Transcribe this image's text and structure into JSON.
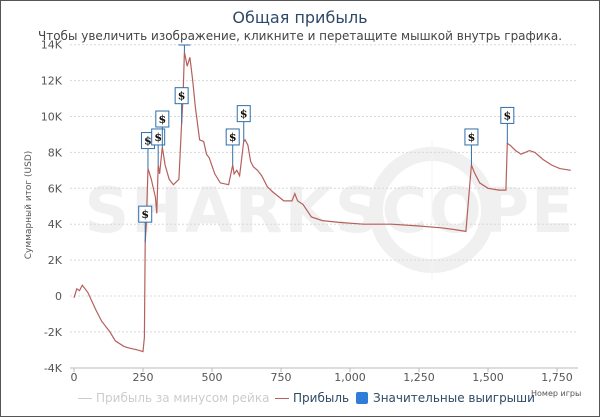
{
  "header": {
    "title": "Общая прибыль",
    "subtitle": "Чтобы увеличить изображение, кликните и перетащите мышкой внутрь графика."
  },
  "axes": {
    "y_title": "Суммарный итог (USD)",
    "x_title": "Номер игры",
    "y_ticks": [
      "14K",
      "12K",
      "10K",
      "8K",
      "6K",
      "4K",
      "2K",
      "0",
      "-2K",
      "-4K"
    ],
    "x_ticks": [
      "0",
      "250",
      "500",
      "750",
      "1,000",
      "1,250",
      "1,500",
      "1,750"
    ]
  },
  "legend": {
    "item1": "Прибыль за минусом рейка",
    "item2": "Прибыль",
    "item3": "Значительные выигрыши"
  },
  "watermark": "SHARKSCOPE",
  "colors": {
    "profit_line": "#b5605c",
    "flag_border": "#2f6eaa",
    "legend_flag": "#2f7dd8",
    "rake_line": "#cccccc"
  },
  "chart_data": {
    "type": "line",
    "title": "Общая прибыль",
    "subtitle": "Чтобы увеличить изображение, кликните и перетащите мышкой внутрь графика.",
    "xlabel": "Номер игры",
    "ylabel": "Суммарный итог (USD)",
    "xlim": [
      0,
      1820
    ],
    "ylim": [
      -4000,
      14000
    ],
    "grid": true,
    "legend_position": "bottom",
    "series": [
      {
        "name": "Прибыль",
        "x": [
          0,
          10,
          20,
          30,
          50,
          80,
          100,
          120,
          130,
          150,
          180,
          200,
          230,
          250,
          255,
          258,
          262,
          268,
          280,
          295,
          300,
          305,
          310,
          320,
          330,
          345,
          360,
          380,
          390,
          395,
          400,
          410,
          420,
          430,
          440,
          455,
          470,
          480,
          490,
          510,
          530,
          560,
          575,
          580,
          590,
          600,
          615,
          620,
          630,
          640,
          650,
          665,
          680,
          700,
          720,
          760,
          790,
          800,
          810,
          830,
          860,
          900,
          960,
          1050,
          1150,
          1250,
          1330,
          1380,
          1420,
          1440,
          1450,
          1470,
          1500,
          1540,
          1565,
          1570,
          1580,
          1600,
          1620,
          1650,
          1670,
          1700,
          1730,
          1760,
          1800
        ],
        "y": [
          -100,
          400,
          300,
          600,
          200,
          -800,
          -1400,
          -1800,
          -2000,
          -2500,
          -2800,
          -2900,
          -3000,
          -3100,
          -2300,
          3000,
          4000,
          7100,
          6500,
          5500,
          4600,
          7300,
          6800,
          8300,
          7300,
          6500,
          6200,
          6500,
          9600,
          11000,
          13600,
          12800,
          13300,
          12000,
          10500,
          8700,
          8600,
          7900,
          7700,
          6800,
          6300,
          6200,
          7300,
          6800,
          7000,
          6700,
          8600,
          8700,
          8400,
          7500,
          7200,
          7000,
          6700,
          6100,
          5800,
          5300,
          5300,
          5700,
          5300,
          5100,
          4400,
          4200,
          4100,
          4000,
          4000,
          3900,
          3800,
          3700,
          3600,
          7300,
          6900,
          6300,
          6000,
          5900,
          5900,
          8500,
          8400,
          8100,
          7900,
          8100,
          8000,
          7600,
          7300,
          7100,
          7000
        ]
      },
      {
        "name": "Прибыль за минусом рейка",
        "values": [],
        "hidden": true
      }
    ],
    "flags": [
      {
        "x": 258,
        "y": 3000,
        "label": "$"
      },
      {
        "x": 268,
        "y": 7100,
        "label": "$"
      },
      {
        "x": 305,
        "y": 7300,
        "label": "$"
      },
      {
        "x": 320,
        "y": 8300,
        "label": "$"
      },
      {
        "x": 390,
        "y": 9600,
        "label": "$"
      },
      {
        "x": 575,
        "y": 7300,
        "label": "$"
      },
      {
        "x": 615,
        "y": 8600,
        "label": "$"
      },
      {
        "x": 1440,
        "y": 7300,
        "label": "$"
      },
      {
        "x": 1570,
        "y": 8500,
        "label": "$"
      }
    ],
    "peak_marker": {
      "x": 400,
      "y": 13600
    }
  }
}
